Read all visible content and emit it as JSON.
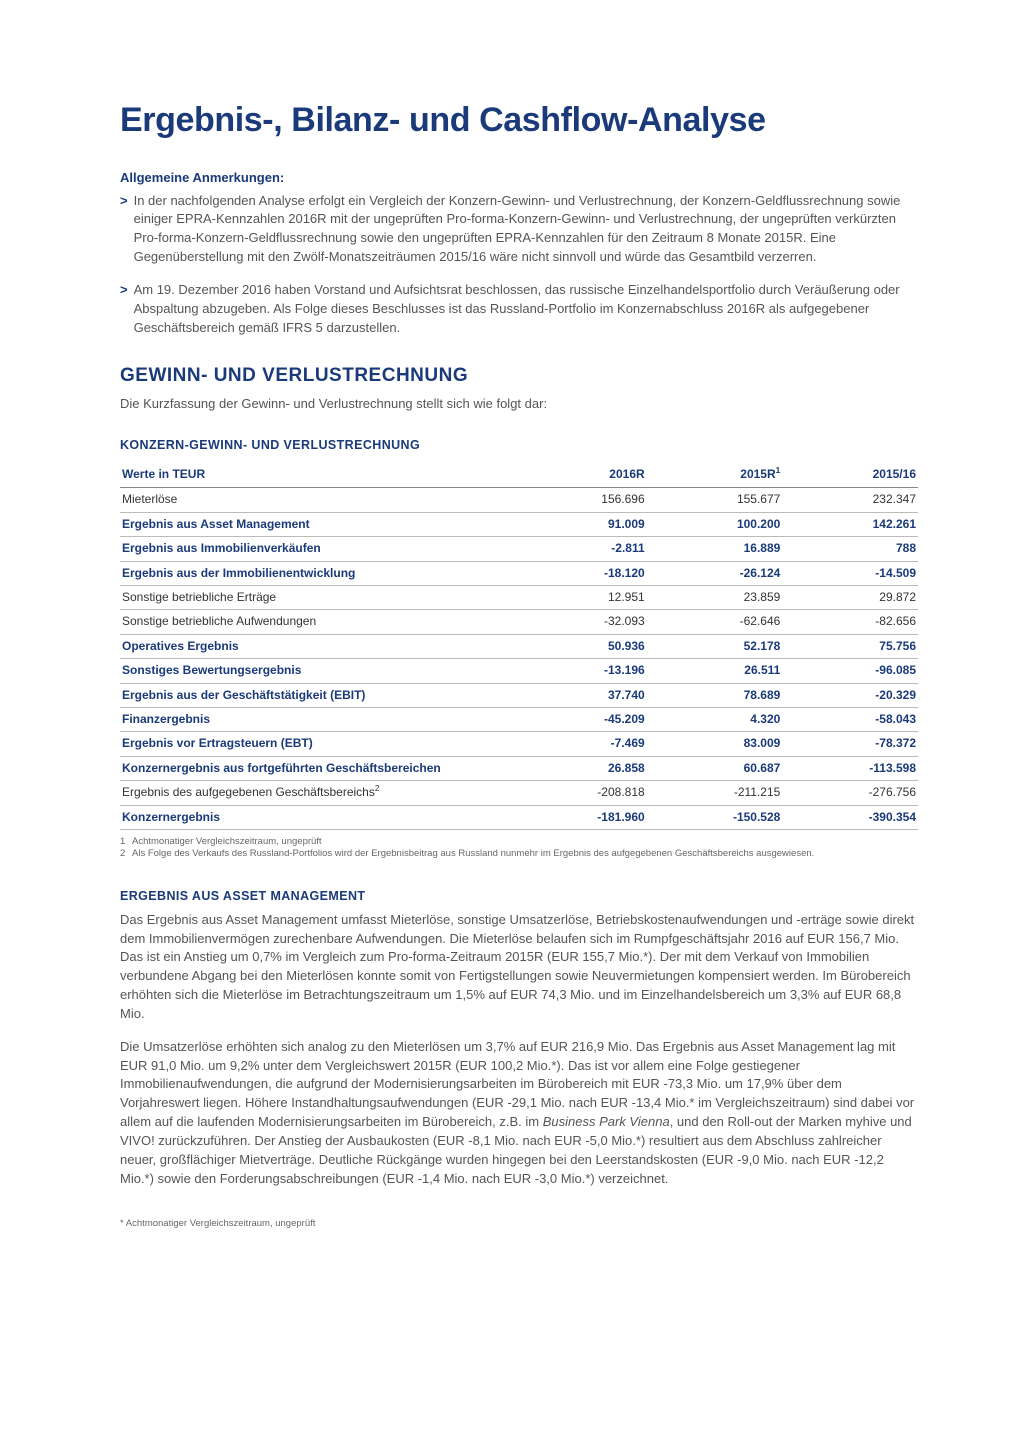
{
  "title": "Ergebnis-, Bilanz- und Cashflow-Analyse",
  "notes_heading": "Allgemeine Anmerkungen:",
  "notes": [
    "In der nachfolgenden Analyse erfolgt ein Vergleich der Konzern-Gewinn- und Verlustrechnung, der Konzern-Geldflussrechnung sowie einiger EPRA-Kennzahlen 2016R mit der ungeprüften Pro-forma-Konzern-Gewinn- und Verlustrechnung, der ungeprüften verkürzten Pro-forma-Konzern-Geldflussrechnung sowie den ungeprüften EPRA-Kennzahlen für den Zeitraum 8 Monate 2015R. Eine Gegenüberstellung mit den Zwölf-Monatszeiträumen 2015/16 wäre nicht sinnvoll und würde das Gesamtbild verzerren.",
    "Am 19. Dezember 2016 haben Vorstand und Aufsichtsrat beschlossen, das russische Einzelhandelsportfolio durch Veräußerung oder Abspaltung abzugeben. Als Folge dieses Beschlusses ist das Russland-Portfolio im Konzernabschluss 2016R als aufgegebener Geschäftsbereich gemäß IFRS 5 darzustellen."
  ],
  "section_heading": "GEWINN- UND VERLUSTRECHNUNG",
  "section_intro": "Die Kurzfassung der Gewinn- und Verlustrechnung stellt sich wie folgt dar:",
  "table_title": "KONZERN-GEWINN- UND VERLUSTRECHNUNG",
  "table": {
    "header_label": "Werte in TEUR",
    "col1": "2016R",
    "col2": "2015R",
    "col2_sup": "1",
    "col3": "2015/16",
    "rows": [
      {
        "label": "Mieterlöse",
        "v1": "156.696",
        "v2": "155.677",
        "v3": "232.347",
        "bold": false
      },
      {
        "label": "Ergebnis aus Asset Management",
        "v1": "91.009",
        "v2": "100.200",
        "v3": "142.261",
        "bold": true
      },
      {
        "label": "Ergebnis aus Immobilienverkäufen",
        "v1": "-2.811",
        "v2": "16.889",
        "v3": "788",
        "bold": true
      },
      {
        "label": "Ergebnis aus der Immobilienentwicklung",
        "v1": "-18.120",
        "v2": "-26.124",
        "v3": "-14.509",
        "bold": true
      },
      {
        "label": "Sonstige betriebliche Erträge",
        "v1": "12.951",
        "v2": "23.859",
        "v3": "29.872",
        "bold": false
      },
      {
        "label": "Sonstige betriebliche Aufwendungen",
        "v1": "-32.093",
        "v2": "-62.646",
        "v3": "-82.656",
        "bold": false
      },
      {
        "label": "Operatives Ergebnis",
        "v1": "50.936",
        "v2": "52.178",
        "v3": "75.756",
        "bold": true
      },
      {
        "label": "Sonstiges Bewertungsergebnis",
        "v1": "-13.196",
        "v2": "26.511",
        "v3": "-96.085",
        "bold": true
      },
      {
        "label": "Ergebnis aus der Geschäftstätigkeit (EBIT)",
        "v1": "37.740",
        "v2": "78.689",
        "v3": "-20.329",
        "bold": true
      },
      {
        "label": "Finanzergebnis",
        "v1": "-45.209",
        "v2": "4.320",
        "v3": "-58.043",
        "bold": true
      },
      {
        "label": "Ergebnis vor Ertragsteuern (EBT)",
        "v1": "-7.469",
        "v2": "83.009",
        "v3": "-78.372",
        "bold": true
      },
      {
        "label": "Konzernergebnis aus fortgeführten Geschäftsbereichen",
        "v1": "26.858",
        "v2": "60.687",
        "v3": "-113.598",
        "bold": true
      },
      {
        "label": "Ergebnis des aufgegebenen Geschäftsbereichs",
        "sup": "2",
        "v1": "-208.818",
        "v2": "-211.215",
        "v3": "-276.756",
        "bold": false
      },
      {
        "label": "Konzernergebnis",
        "v1": "-181.960",
        "v2": "-150.528",
        "v3": "-390.354",
        "bold": true
      }
    ]
  },
  "footnotes": [
    {
      "num": "1",
      "text": "Achtmonatiger Vergleichszeitraum, ungeprüft"
    },
    {
      "num": "2",
      "text": "Als Folge des Verkaufs des Russland-Portfolios wird der Ergebnisbeitrag aus Russland nunmehr im Ergebnis des aufgegebenen Geschäftsbereichs ausgewiesen."
    }
  ],
  "subsection_heading": "ERGEBNIS AUS ASSET MANAGEMENT",
  "para1": "Das Ergebnis aus Asset Management umfasst Mieterlöse, sonstige Umsatzerlöse, Betriebskostenaufwendungen und -erträge sowie direkt dem Immobilienvermögen zurechenbare Aufwendungen. Die Mieterlöse belaufen sich im Rumpfgeschäftsjahr 2016 auf EUR 156,7 Mio. Das ist ein Anstieg um 0,7% im Vergleich zum Pro-forma-Zeitraum 2015R (EUR 155,7 Mio.*). Der mit dem Verkauf von Immobilien verbundene Abgang bei den Mieterlösen konnte somit von Fertigstellungen sowie Neuvermietungen kompensiert werden. Im Bürobereich erhöhten sich die Mieterlöse im Betrachtungszeitraum um 1,5% auf EUR 74,3 Mio. und im Einzelhandelsbereich um 3,3% auf EUR 68,8 Mio.",
  "para2_a": "Die Umsatzerlöse erhöhten sich analog zu den Mieterlösen um 3,7% auf EUR 216,9 Mio. Das Ergebnis aus Asset Management lag mit EUR 91,0 Mio. um 9,2% unter dem Vergleichswert 2015R (EUR 100,2 Mio.*). Das ist vor allem eine Folge gestiegener Immobilienaufwendungen, die aufgrund der Modernisierungsarbeiten im Bürobereich mit EUR -73,3 Mio. um 17,9% über dem Vorjahreswert liegen. Höhere Instandhaltungsaufwendungen (EUR -29,1 Mio. nach EUR -13,4 Mio.* im Vergleichszeitraum) sind dabei vor allem auf die laufenden Modernisierungsarbeiten im Bürobereich, z.B. im ",
  "para2_ital": "Business Park Vienna",
  "para2_b": ", und den Roll-out der Marken myhive und VIVO! zurückzuführen. Der Anstieg der Ausbaukosten (EUR -8,1 Mio. nach EUR -5,0 Mio.*) resultiert aus dem Abschluss zahlreicher neuer, großflächiger Mietverträge. Deutliche Rückgänge wurden hingegen bei den Leerstandskosten (EUR -9,0 Mio. nach EUR -12,2 Mio.*) sowie den Forderungsabschreibungen (EUR -1,4 Mio. nach EUR -3,0 Mio.*) verzeichnet.",
  "asterisk_note": "* Achtmonatiger Vergleichszeitraum, ungeprüft"
}
